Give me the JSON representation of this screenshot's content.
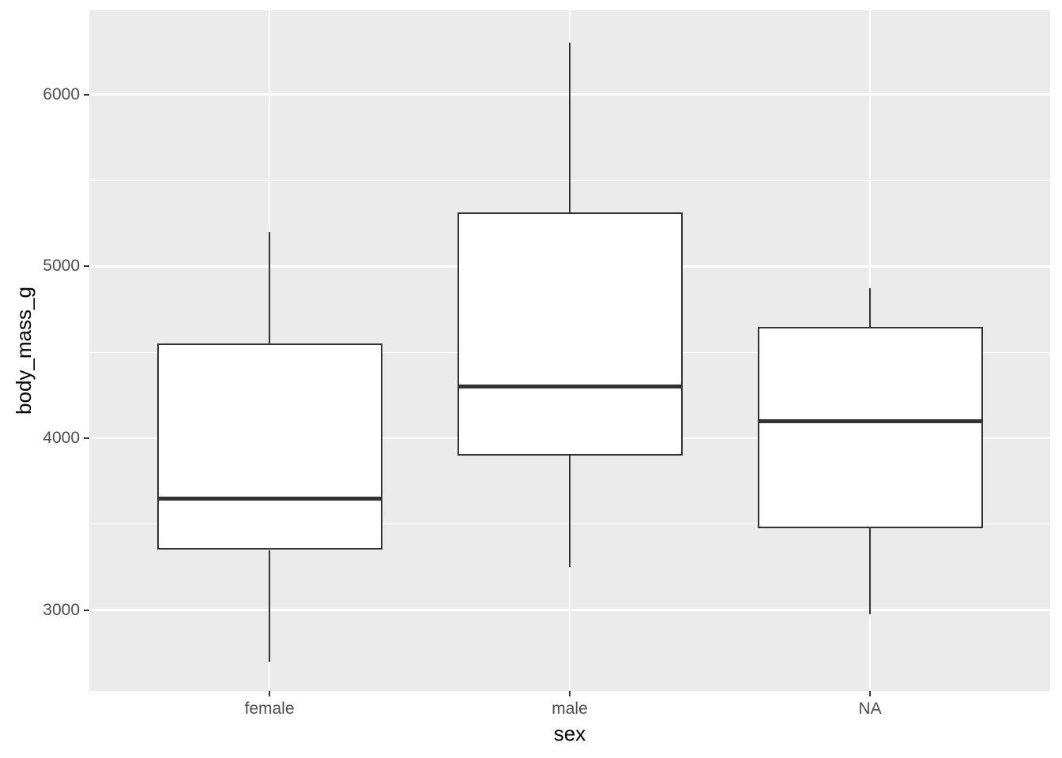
{
  "chart_data": {
    "type": "boxplot",
    "xlabel": "sex",
    "ylabel": "body_mass_g",
    "categories": [
      "female",
      "male",
      "NA"
    ],
    "series": [
      {
        "category": "female",
        "min": 2700,
        "q1": 3350,
        "median": 3650,
        "q3": 4550,
        "max": 5200
      },
      {
        "category": "male",
        "min": 3250,
        "q1": 3900,
        "median": 4300,
        "q3": 5312.5,
        "max": 6300
      },
      {
        "category": "NA",
        "min": 2975,
        "q1": 3475,
        "median": 4100,
        "q3": 4650,
        "max": 4875
      }
    ],
    "yticks": [
      3000,
      4000,
      5000,
      6000
    ],
    "yticks_minor": [
      3500,
      4500,
      5500
    ],
    "ylim": [
      2530,
      6490
    ],
    "grid": true,
    "legend": false,
    "outliers": [],
    "colors": {
      "panel_background": "#EBEBEB",
      "gridline": "#FFFFFF",
      "box_border": "#333333",
      "box_fill": "#FFFFFF",
      "median": "#333333",
      "tick_label": "#4D4D4D",
      "axis_title": "#000000"
    }
  }
}
